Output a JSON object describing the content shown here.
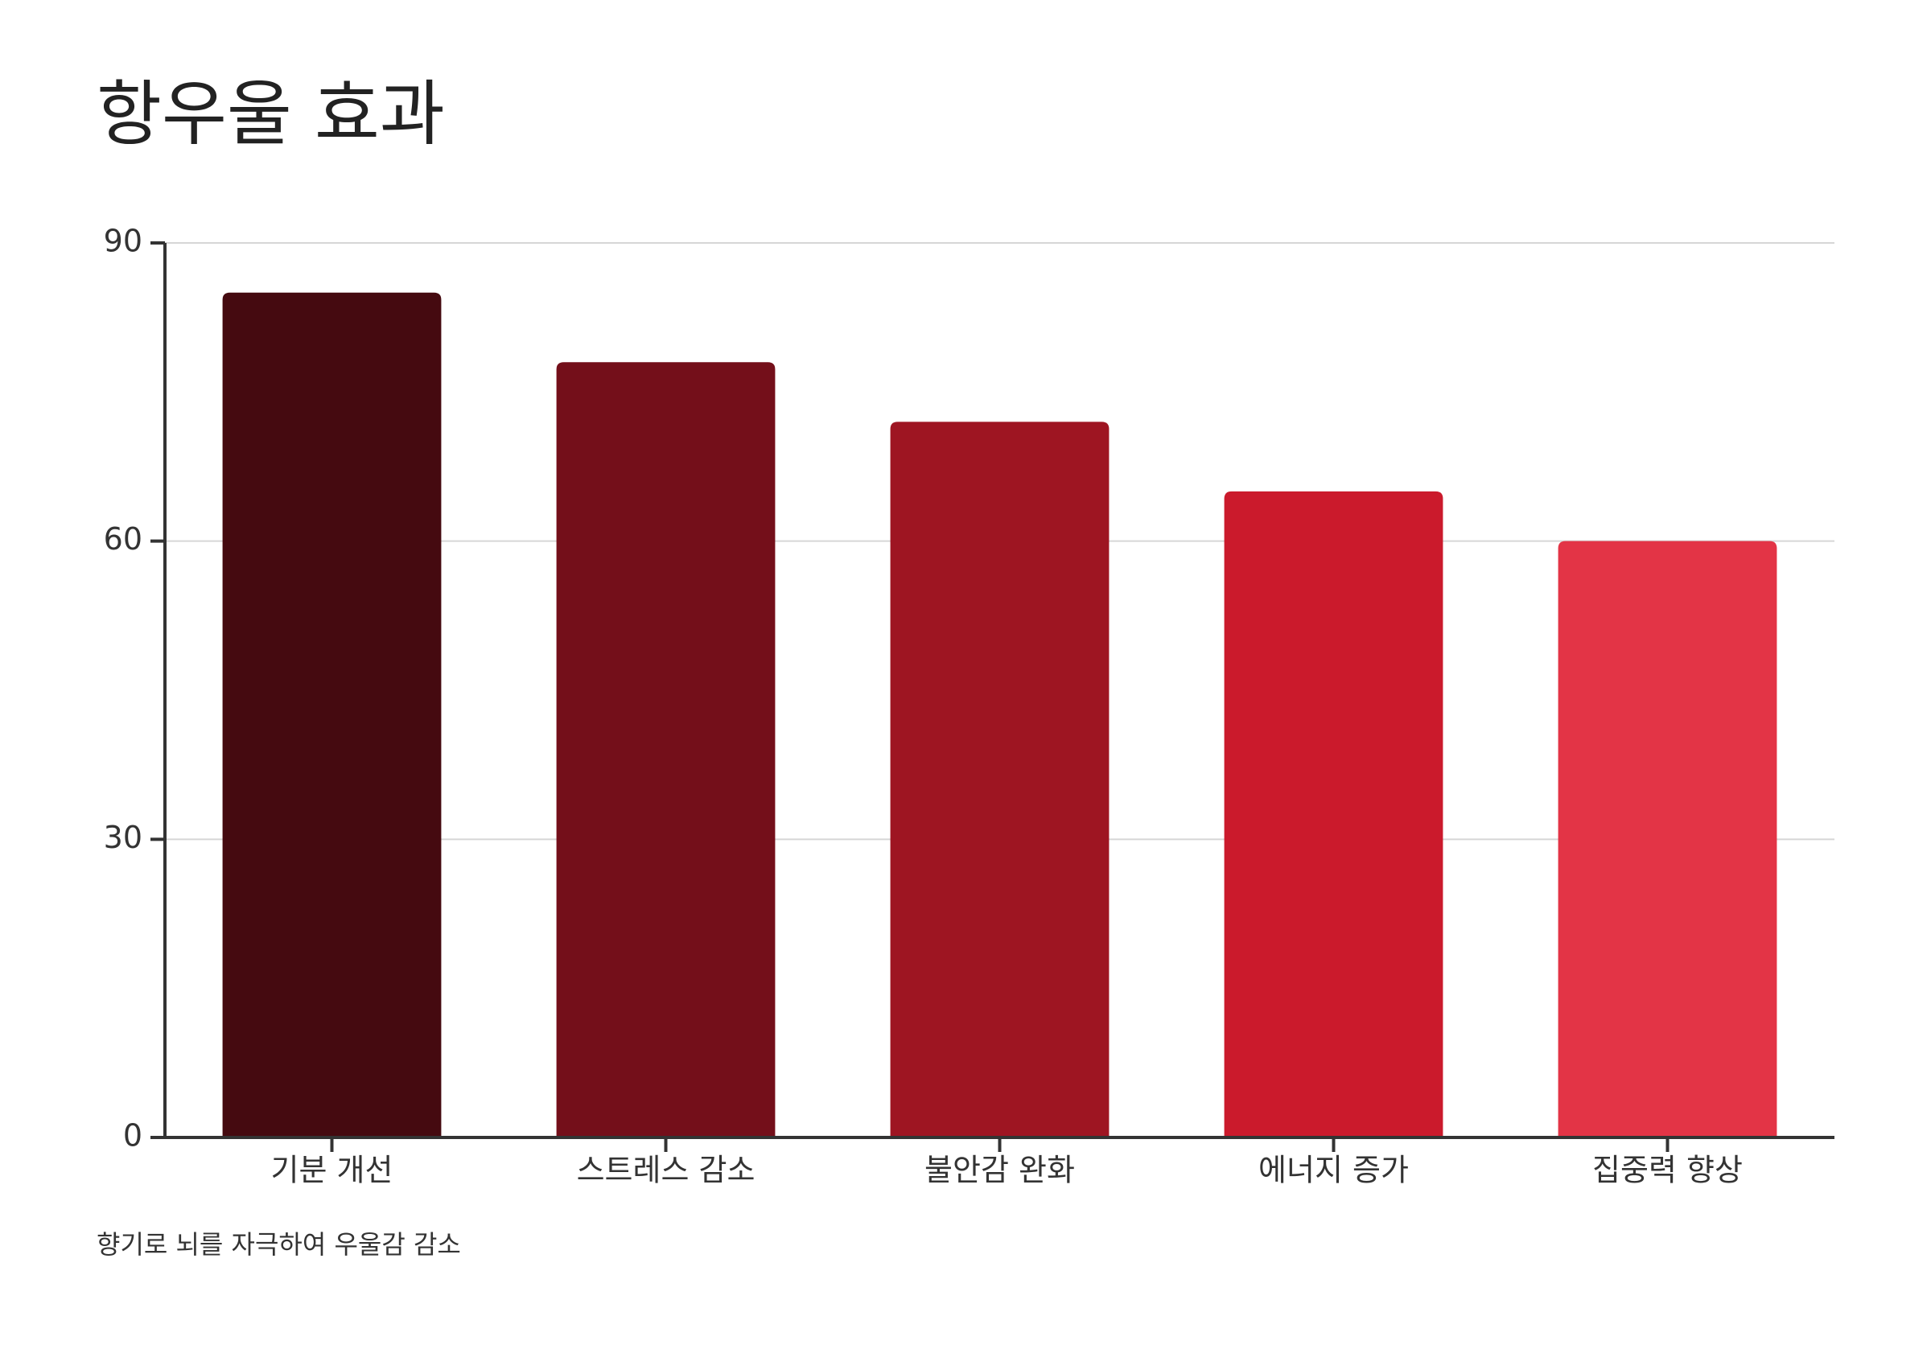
{
  "chart_data": {
    "type": "bar",
    "title": "항우울 효과",
    "categories": [
      "기분 개선",
      "스트레스 감소",
      "불안감 완화",
      "에너지 증가",
      "집중력 향상"
    ],
    "values": [
      85,
      78,
      72,
      65,
      60
    ],
    "colors": [
      "#450a10",
      "#740f1a",
      "#9e1522",
      "#cb1a2c",
      "#e33446"
    ],
    "ylim": [
      0,
      90
    ],
    "yticks": [
      0,
      30,
      60,
      90
    ],
    "grid": true,
    "note": "향기로 뇌를 자극하여 우울감 감소"
  }
}
